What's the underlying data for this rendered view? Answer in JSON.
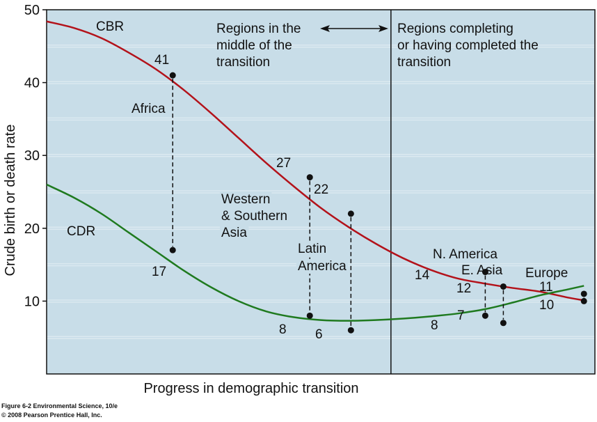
{
  "chart_data": {
    "type": "line",
    "title": "",
    "xlabel": "Progress in demographic transition",
    "ylabel": "Crude birth or death rate",
    "ylim": [
      0,
      50
    ],
    "yticks": [
      10,
      20,
      30,
      40,
      50
    ],
    "grid": true,
    "background_color": "#c8dde8",
    "grid_color": "#dbe9f0",
    "series": [
      {
        "name": "CBR",
        "color": "#b3121a",
        "x": [
          0,
          0.05,
          0.1,
          0.15,
          0.2,
          0.25,
          0.3,
          0.35,
          0.4,
          0.45,
          0.5,
          0.55,
          0.6,
          0.65,
          0.7,
          0.75,
          0.8,
          0.85,
          0.9,
          0.95,
          0.98
        ],
        "values": [
          48.4,
          47.5,
          46.1,
          44.1,
          41.8,
          39.0,
          35.8,
          32.4,
          29.0,
          25.8,
          22.8,
          20.2,
          17.9,
          15.9,
          14.3,
          13.1,
          12.4,
          11.8,
          11.3,
          10.5,
          10.1
        ]
      },
      {
        "name": "CDR",
        "color": "#1f7a1f",
        "x": [
          0,
          0.05,
          0.1,
          0.15,
          0.2,
          0.25,
          0.3,
          0.35,
          0.4,
          0.45,
          0.5,
          0.55,
          0.6,
          0.65,
          0.7,
          0.75,
          0.8,
          0.85,
          0.9,
          0.95,
          0.98
        ],
        "values": [
          26.0,
          24.2,
          22.0,
          19.4,
          16.8,
          14.2,
          11.9,
          10.0,
          8.6,
          7.8,
          7.4,
          7.3,
          7.4,
          7.6,
          7.9,
          8.3,
          8.9,
          9.8,
          10.8,
          11.6,
          12.1
        ]
      }
    ],
    "points": [
      {
        "region": "Africa",
        "x": 0.23,
        "cbr": 41,
        "cdr": 17
      },
      {
        "region": "Western & Southern Asia",
        "x": 0.48,
        "cbr": 27,
        "cdr": 8
      },
      {
        "region": "Latin America",
        "x": 0.555,
        "cbr": 22,
        "cdr": 6
      },
      {
        "region": "N. America",
        "x": 0.8,
        "cbr": 14,
        "cdr": 8
      },
      {
        "region": "E. Asia",
        "x": 0.833,
        "cbr": 12,
        "cdr": 7
      },
      {
        "region": "Europe",
        "x": 0.98,
        "cbr": 11,
        "cdr": 10
      }
    ],
    "divider_x": 0.628,
    "labels": {
      "cbr": "CBR",
      "cdr": "CDR",
      "africa": "Africa",
      "western": [
        "Western",
        "& Southern",
        "Asia"
      ],
      "latin": [
        "Latin",
        "America"
      ],
      "namerica": "N. America",
      "easia": "E. Asia",
      "europe": "Europe",
      "region_mid": [
        "Regions in the",
        "middle of the",
        "transition"
      ],
      "region_late": [
        "Regions completing",
        "or having completed the",
        "transition"
      ]
    },
    "value_labels": {
      "africa_cbr": "41",
      "africa_cdr": "17",
      "wsa_cbr": "27",
      "wsa_cdr": "8",
      "la_cbr": "22",
      "la_cdr": "6",
      "na_cbr": "14",
      "na_cdr": "8",
      "ea_cbr": "12",
      "ea_cdr": "7",
      "eu_cbr": "11",
      "eu_cdr": "10"
    }
  },
  "caption": {
    "line1": "Figure 6-2  Environmental Science, 10/e",
    "line2": "© 2008 Pearson Prentice Hall, Inc."
  }
}
